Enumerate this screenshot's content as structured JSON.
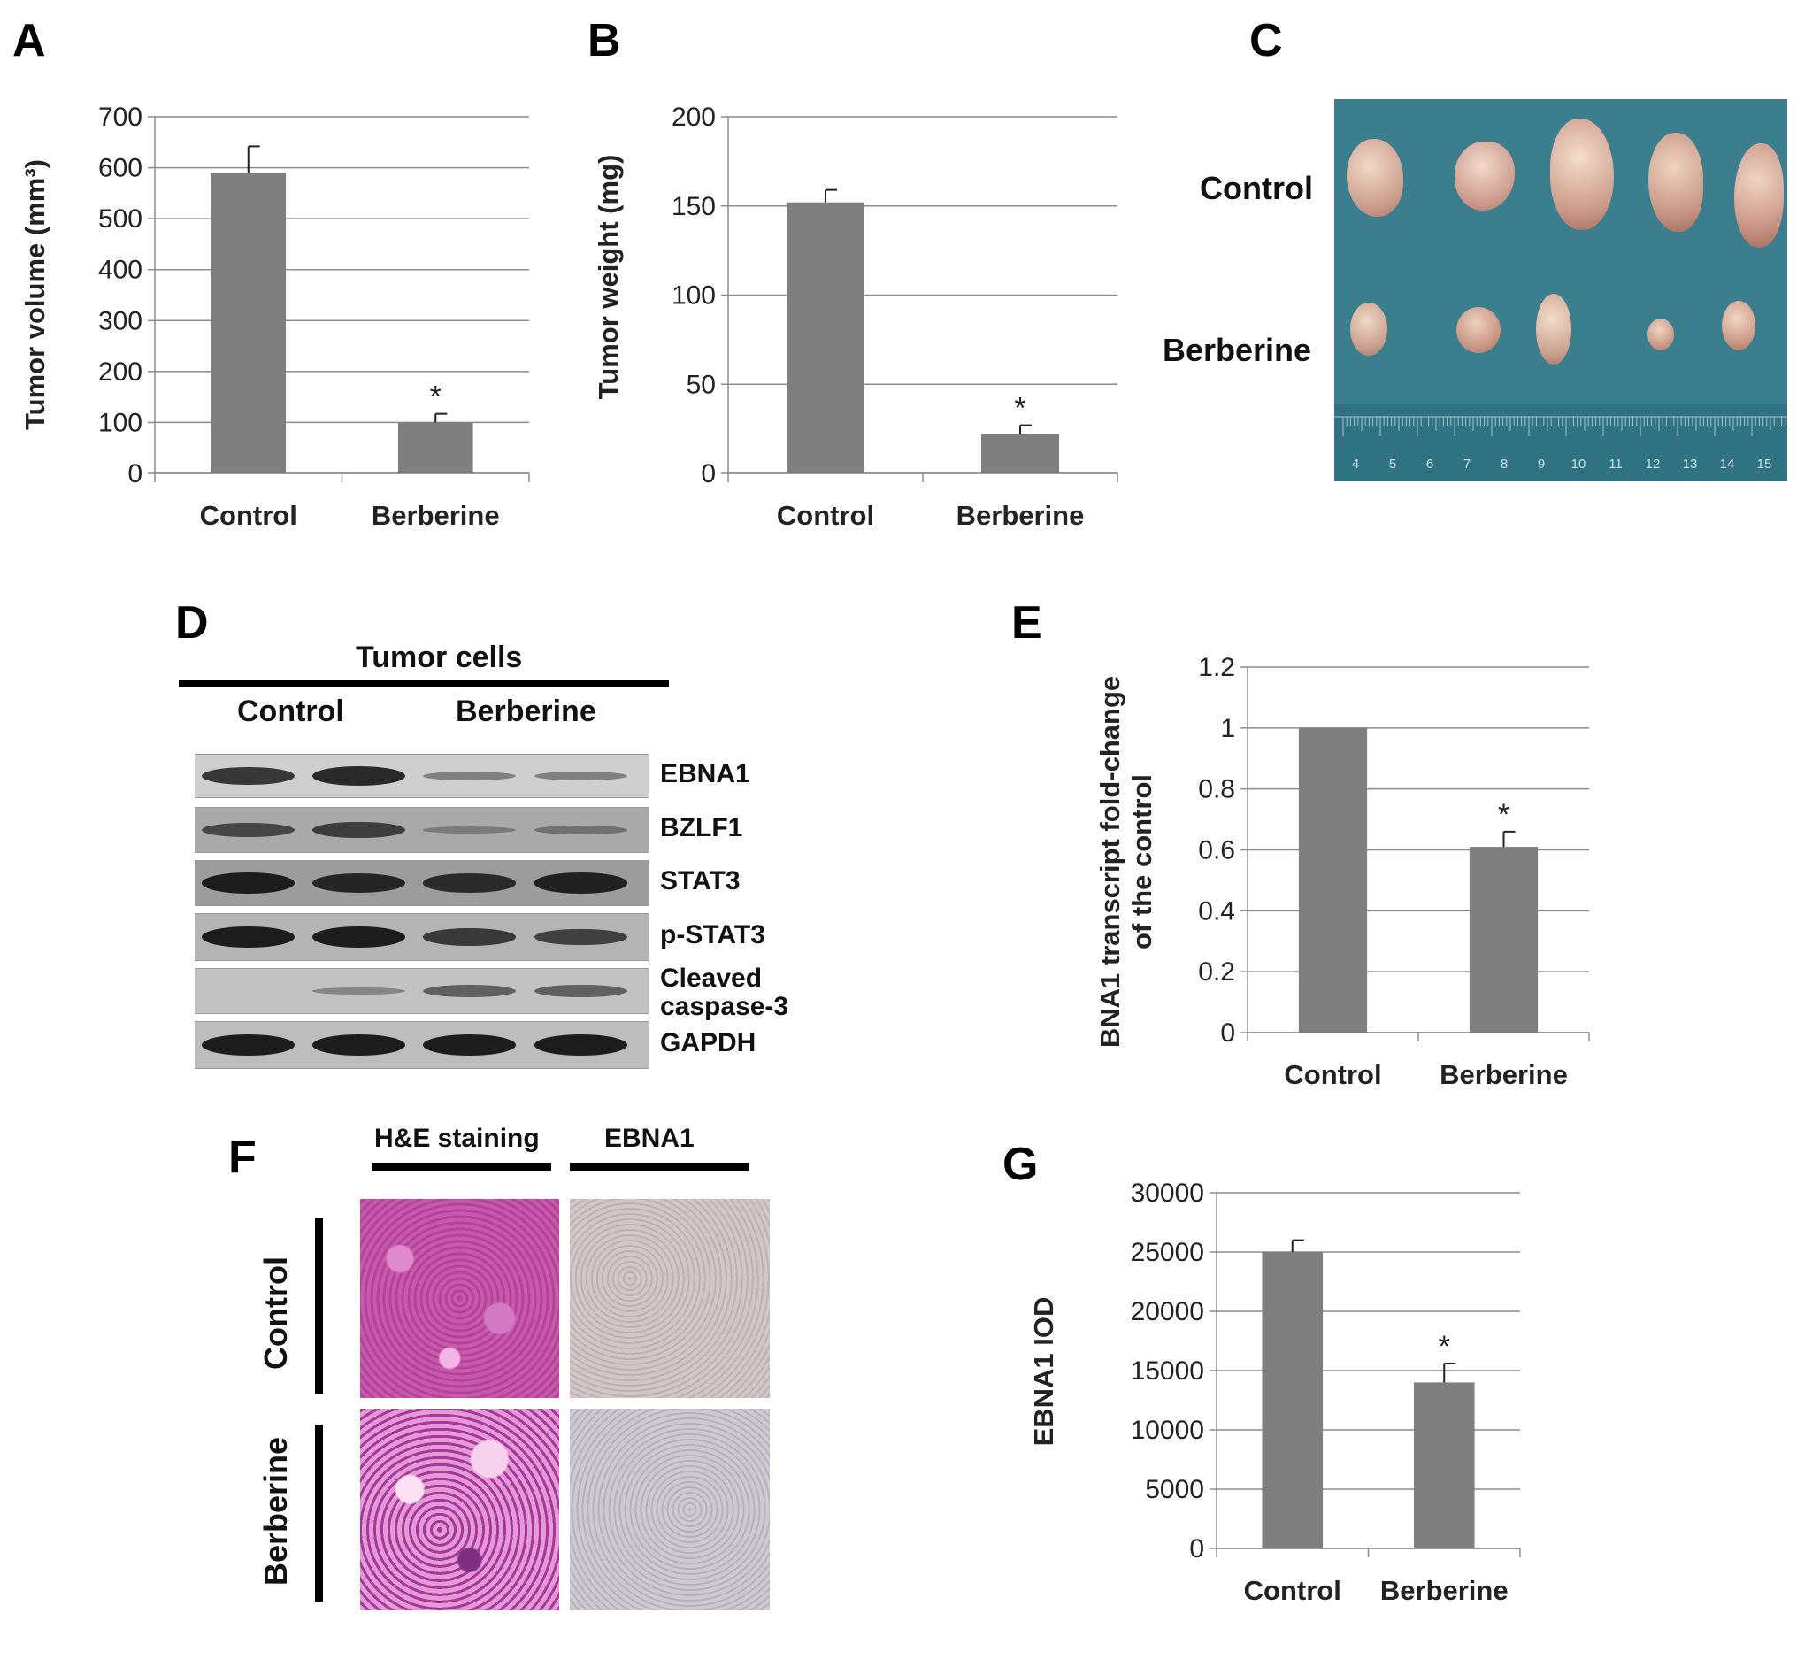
{
  "panels": {
    "A": "A",
    "B": "B",
    "C": "C",
    "D": "D",
    "E": "E",
    "F": "F",
    "G": "G"
  },
  "chart_data": [
    {
      "id": "A",
      "type": "bar",
      "categories": [
        "Control",
        "Berberine"
      ],
      "values": [
        590,
        100
      ],
      "errors": [
        52,
        17
      ],
      "significance": [
        "",
        "*"
      ],
      "ylabel": "Tumor volume (mm³)",
      "ylim": [
        0,
        700
      ],
      "yticks": [
        0,
        100,
        200,
        300,
        400,
        500,
        600,
        700
      ],
      "grid": true,
      "bar_color": "#7f7f7f"
    },
    {
      "id": "B",
      "type": "bar",
      "categories": [
        "Control",
        "Berberine"
      ],
      "values": [
        152,
        22
      ],
      "errors": [
        7,
        5
      ],
      "significance": [
        "",
        "*"
      ],
      "ylabel": "Tumor weight  (mg)",
      "ylim": [
        0,
        200
      ],
      "yticks": [
        0,
        50,
        100,
        150,
        200
      ],
      "grid": true,
      "bar_color": "#7f7f7f"
    },
    {
      "id": "E",
      "type": "bar",
      "categories": [
        "Control",
        "Berberine"
      ],
      "values": [
        1.0,
        0.61
      ],
      "errors": [
        0,
        0.05
      ],
      "significance": [
        "",
        "*"
      ],
      "ylabel_lines": [
        "BNA1 transcript  fold-change",
        "of the control"
      ],
      "ylim": [
        0,
        1.2
      ],
      "yticks": [
        0,
        0.2,
        0.4,
        0.6,
        0.8,
        1,
        1.2
      ],
      "grid": true,
      "bar_color": "#7f7f7f"
    },
    {
      "id": "G",
      "type": "bar",
      "categories": [
        "Control",
        "Berberine"
      ],
      "values": [
        25000,
        14000
      ],
      "errors": [
        1000,
        1600
      ],
      "significance": [
        "",
        "*"
      ],
      "ylabel": "EBNA1 IOD",
      "ylim": [
        0,
        30000
      ],
      "yticks": [
        0,
        5000,
        10000,
        15000,
        20000,
        25000,
        30000
      ],
      "grid": true,
      "bar_color": "#7f7f7f"
    }
  ],
  "panel_c": {
    "row_labels": [
      "Control",
      "Berberine"
    ],
    "ruler_numbers": [
      "4",
      "5",
      "6",
      "7",
      "8",
      "9",
      "10",
      "11",
      "12",
      "13",
      "14",
      "15"
    ],
    "background_color": "#3b7f8f"
  },
  "panel_d": {
    "header": "Tumor cells",
    "groups": [
      "Control",
      "Berberine"
    ],
    "blots": [
      {
        "label": "EBNA1",
        "intensity": [
          0.8,
          0.9,
          0.25,
          0.25
        ]
      },
      {
        "label": "BZLF1",
        "intensity": [
          0.6,
          0.7,
          0.1,
          0.2
        ]
      },
      {
        "label": "STAT3",
        "intensity": [
          1.0,
          0.9,
          0.85,
          0.95
        ]
      },
      {
        "label": "p-STAT3",
        "intensity": [
          1.0,
          1.0,
          0.75,
          0.7
        ]
      },
      {
        "label_lines": [
          "Cleaved",
          "caspase-3"
        ],
        "intensity": [
          0.0,
          0.15,
          0.45,
          0.45
        ]
      },
      {
        "label": "GAPDH",
        "intensity": [
          1.0,
          1.0,
          1.0,
          1.0
        ]
      }
    ]
  },
  "panel_f": {
    "column_labels": [
      "H&E staining",
      "EBNA1"
    ],
    "row_labels": [
      "Control",
      "Berberine"
    ],
    "he_color": "#c24fa3",
    "ebna1_color": "#c8bcc0"
  }
}
